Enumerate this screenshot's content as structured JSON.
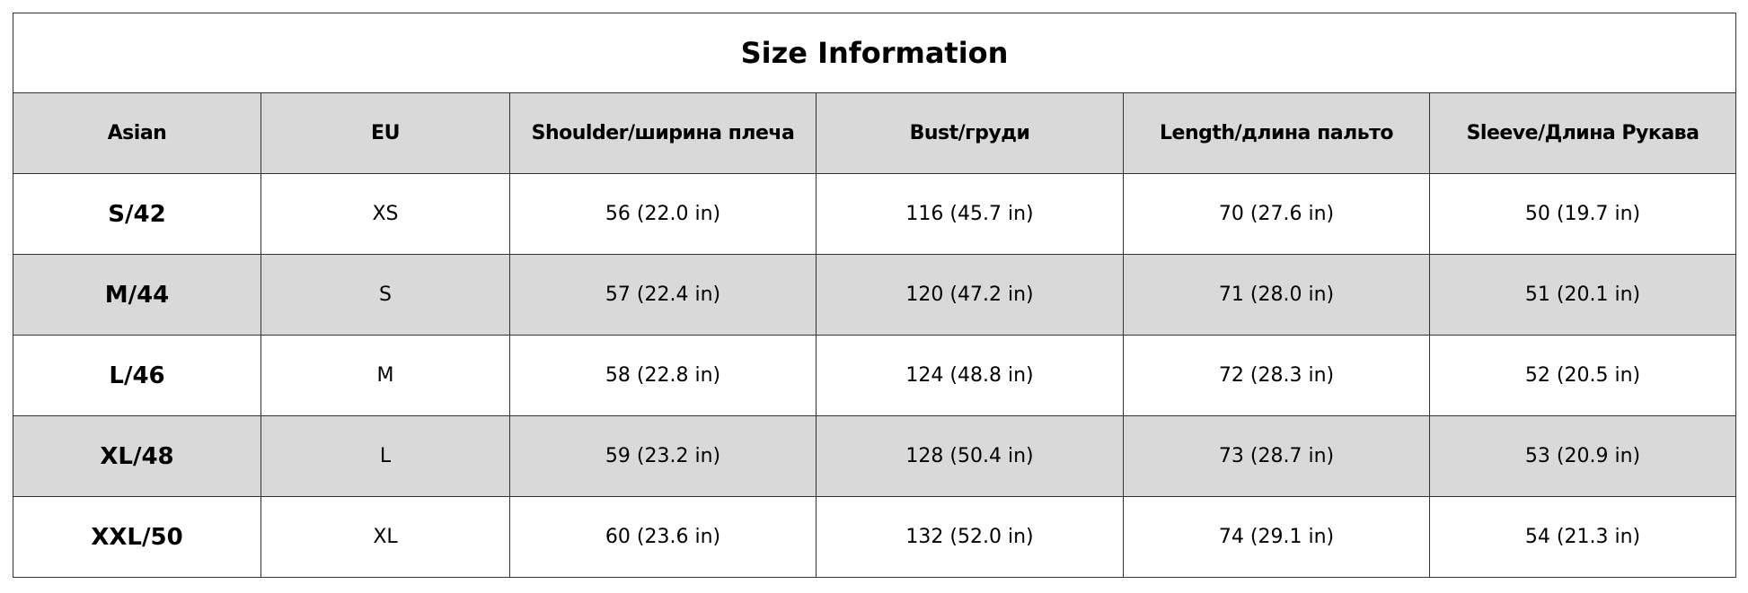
{
  "title": "Size Information",
  "colors": {
    "header_bg": "#d9d9d9",
    "border": "#333333"
  },
  "headers": [
    "Asian",
    "EU",
    "Shoulder/ширина плеча",
    "Bust/груди",
    "Length/длина пальто",
    "Sleeve/Длина Рукава"
  ],
  "rows": [
    [
      "S/42",
      "XS",
      "56 (22.0 in)",
      "116 (45.7 in)",
      "70 (27.6 in)",
      "50 (19.7 in)"
    ],
    [
      "M/44",
      "S",
      "57 (22.4 in)",
      "120 (47.2 in)",
      "71 (28.0 in)",
      "51 (20.1 in)"
    ],
    [
      "L/46",
      "M",
      "58 (22.8 in)",
      "124 (48.8 in)",
      "72 (28.3 in)",
      "52 (20.5 in)"
    ],
    [
      "XL/48",
      "L",
      "59 (23.2 in)",
      "128 (50.4 in)",
      "73 (28.7 in)",
      "53 (20.9 in)"
    ],
    [
      "XXL/50",
      "XL",
      "60 (23.6 in)",
      "132 (52.0 in)",
      "74 (29.1 in)",
      "54 (21.3 in)"
    ]
  ]
}
